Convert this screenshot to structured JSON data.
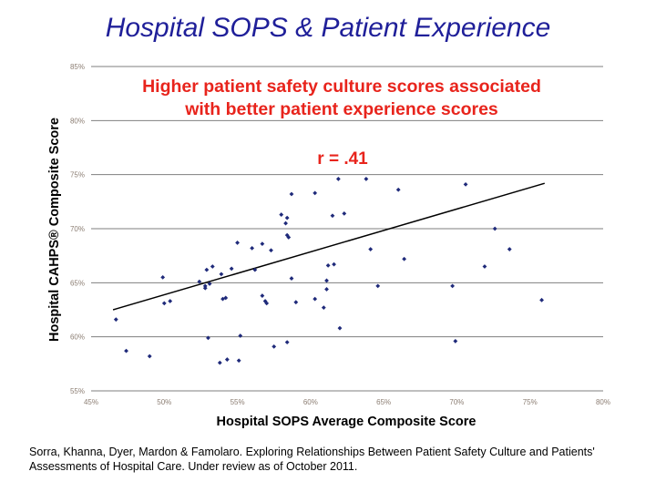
{
  "slide": {
    "title": "Hospital SOPS & Patient Experience",
    "citation_line1": "Sorra, Khanna, Dyer, Mardon & Famolaro. Exploring Relationships Between Patient Safety Culture and Patients'",
    "citation_line2": "Assessments of Hospital Care. Under review as of October 2011."
  },
  "colors": {
    "title": "#1f1f99",
    "headline": "#e8241c",
    "points": "#1f2a7a",
    "gridline": "#7f7f7f",
    "tick_text": "#8c7e73"
  },
  "chart_data": {
    "type": "scatter",
    "headline_line1": "Higher patient safety culture scores associated",
    "headline_line2": "with better patient experience scores",
    "correlation": "r = .41",
    "xlabel": "Hospital SOPS Average Composite Score",
    "ylabel": "Hospital CAHPS® Composite Score",
    "xlim": [
      45,
      80
    ],
    "ylim": [
      55,
      85
    ],
    "xticks": [
      45,
      50,
      55,
      60,
      65,
      70,
      75,
      80
    ],
    "yticks": [
      55,
      60,
      65,
      70,
      75,
      80,
      85
    ],
    "xtick_labels": [
      "45%",
      "50%",
      "55%",
      "60%",
      "65%",
      "70%",
      "75%",
      "80%"
    ],
    "ytick_labels": [
      "55%",
      "60%",
      "65%",
      "70%",
      "75%",
      "80%",
      "85%"
    ],
    "grid": "horizontal",
    "trendline": {
      "x": [
        46.5,
        76
      ],
      "y": [
        62.5,
        74.2
      ]
    },
    "points": [
      [
        46.7,
        61.6
      ],
      [
        47.4,
        58.7
      ],
      [
        49.0,
        58.2
      ],
      [
        49.9,
        65.5
      ],
      [
        50.0,
        63.1
      ],
      [
        50.4,
        63.3
      ],
      [
        52.4,
        65.1
      ],
      [
        52.8,
        64.7
      ],
      [
        52.8,
        64.5
      ],
      [
        52.9,
        66.2
      ],
      [
        53.0,
        59.9
      ],
      [
        53.1,
        64.9
      ],
      [
        53.3,
        66.5
      ],
      [
        53.8,
        57.6
      ],
      [
        53.9,
        65.8
      ],
      [
        54.0,
        63.5
      ],
      [
        54.2,
        63.6
      ],
      [
        54.3,
        57.9
      ],
      [
        54.6,
        66.3
      ],
      [
        55.0,
        68.7
      ],
      [
        55.1,
        57.8
      ],
      [
        55.2,
        60.1
      ],
      [
        56.0,
        68.2
      ],
      [
        56.2,
        66.2
      ],
      [
        56.7,
        68.6
      ],
      [
        56.7,
        63.8
      ],
      [
        56.9,
        63.3
      ],
      [
        57.0,
        63.1
      ],
      [
        57.3,
        68.0
      ],
      [
        57.5,
        59.1
      ],
      [
        58.0,
        71.3
      ],
      [
        58.3,
        70.5
      ],
      [
        58.4,
        71.0
      ],
      [
        58.4,
        69.4
      ],
      [
        58.5,
        69.2
      ],
      [
        58.4,
        59.5
      ],
      [
        58.7,
        73.2
      ],
      [
        58.7,
        65.4
      ],
      [
        59.0,
        63.2
      ],
      [
        60.3,
        63.5
      ],
      [
        60.3,
        73.3
      ],
      [
        60.9,
        62.7
      ],
      [
        61.1,
        64.4
      ],
      [
        61.1,
        65.2
      ],
      [
        61.2,
        66.6
      ],
      [
        61.5,
        71.2
      ],
      [
        61.6,
        66.7
      ],
      [
        61.9,
        74.6
      ],
      [
        62.0,
        60.8
      ],
      [
        62.3,
        71.4
      ],
      [
        63.8,
        74.6
      ],
      [
        64.1,
        68.1
      ],
      [
        64.6,
        64.7
      ],
      [
        66.0,
        73.6
      ],
      [
        66.4,
        67.2
      ],
      [
        69.7,
        64.7
      ],
      [
        69.9,
        59.6
      ],
      [
        70.6,
        74.1
      ],
      [
        71.9,
        66.5
      ],
      [
        72.6,
        70.0
      ],
      [
        73.6,
        68.1
      ],
      [
        75.8,
        63.4
      ]
    ]
  }
}
